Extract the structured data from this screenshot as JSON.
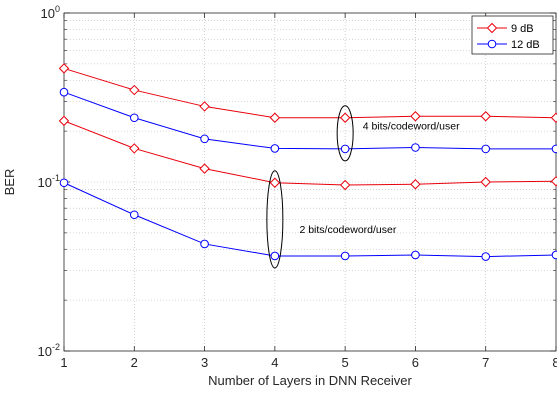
{
  "chart_data": {
    "type": "line",
    "xlabel": "Number of Layers in DNN Receiver",
    "ylabel": "BER",
    "x": [
      1,
      2,
      3,
      4,
      5,
      6,
      7,
      8
    ],
    "xlim": [
      1,
      8
    ],
    "ylim": [
      0.01,
      1
    ],
    "yscale": "log",
    "grid": true,
    "legend_position": "top-right",
    "x_tick_labels": [
      "1",
      "2",
      "3",
      "4",
      "5",
      "6",
      "7",
      "8"
    ],
    "y_tick_labels": [
      {
        "value": 1,
        "base": "10",
        "exp": "0"
      },
      {
        "value": 0.1,
        "base": "10",
        "exp": "-1"
      },
      {
        "value": 0.01,
        "base": "10",
        "exp": "-2"
      }
    ],
    "legend": [
      {
        "label": "9 dB",
        "color": "#e8000b",
        "marker": "diamond"
      },
      {
        "label": "12 dB",
        "color": "#0000ff",
        "marker": "circle"
      }
    ],
    "series": [
      {
        "name": "9 dB",
        "group": "4 bits/codeword/user",
        "color": "#e8000b",
        "marker": "diamond",
        "values": [
          0.47,
          0.35,
          0.28,
          0.24,
          0.24,
          0.245,
          0.245,
          0.24
        ]
      },
      {
        "name": "12 dB",
        "group": "4 bits/codeword/user",
        "color": "#0000ff",
        "marker": "circle",
        "values": [
          0.34,
          0.24,
          0.18,
          0.158,
          0.157,
          0.16,
          0.157,
          0.157
        ]
      },
      {
        "name": "9 dB",
        "group": "2 bits/codeword/user",
        "color": "#e8000b",
        "marker": "diamond",
        "values": [
          0.23,
          0.158,
          0.12,
          0.099,
          0.096,
          0.097,
          0.1,
          0.101
        ]
      },
      {
        "name": "12 dB",
        "group": "2 bits/codeword/user",
        "color": "#0000ff",
        "marker": "circle",
        "values": [
          0.099,
          0.064,
          0.043,
          0.0365,
          0.0365,
          0.037,
          0.0362,
          0.037
        ]
      }
    ],
    "annotations": [
      {
        "text": "4 bits/codeword/user",
        "x": 5,
        "y_low": 0.157,
        "y_high": 0.24,
        "label_x": 5.25,
        "label_y": 0.205
      },
      {
        "text": "2 bits/codeword/user",
        "x": 4,
        "y_low": 0.0365,
        "y_high": 0.099,
        "label_x": 4.35,
        "label_y": 0.05
      }
    ]
  }
}
